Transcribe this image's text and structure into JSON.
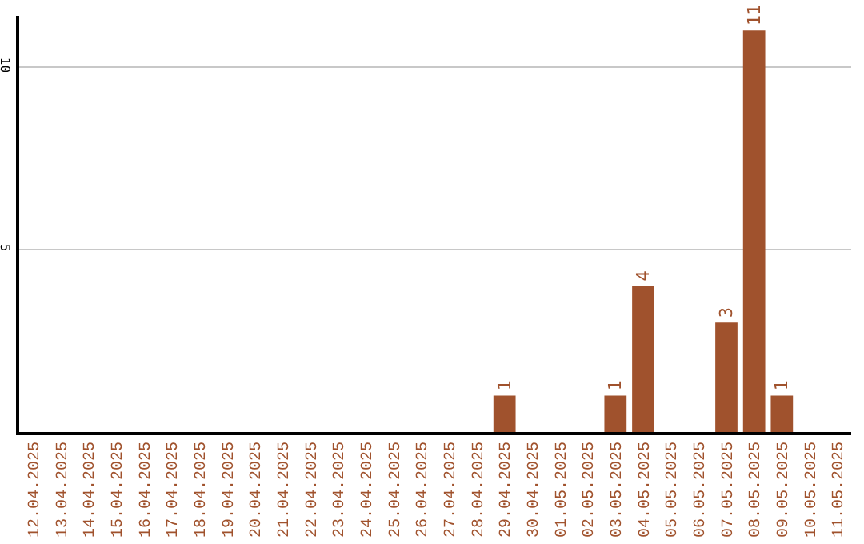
{
  "chart_data": {
    "type": "bar",
    "categories": [
      "12.04.2025",
      "13.04.2025",
      "14.04.2025",
      "15.04.2025",
      "16.04.2025",
      "17.04.2025",
      "18.04.2025",
      "19.04.2025",
      "20.04.2025",
      "21.04.2025",
      "22.04.2025",
      "23.04.2025",
      "24.04.2025",
      "25.04.2025",
      "26.04.2025",
      "27.04.2025",
      "28.04.2025",
      "29.04.2025",
      "30.04.2025",
      "01.05.2025",
      "02.05.2025",
      "03.05.2025",
      "04.05.2025",
      "05.05.2025",
      "06.05.2025",
      "07.05.2025",
      "08.05.2025",
      "09.05.2025",
      "10.05.2025",
      "11.05.2025"
    ],
    "values": [
      0,
      0,
      0,
      0,
      0,
      0,
      0,
      0,
      0,
      0,
      0,
      0,
      0,
      0,
      0,
      0,
      0,
      1,
      0,
      0,
      0,
      1,
      4,
      0,
      0,
      3,
      11,
      1,
      0,
      0
    ],
    "value_labels": [
      null,
      null,
      null,
      null,
      null,
      null,
      null,
      null,
      null,
      null,
      null,
      null,
      null,
      null,
      null,
      null,
      null,
      "1",
      null,
      null,
      null,
      "1",
      "4",
      null,
      null,
      "3",
      "11",
      "1",
      null,
      null
    ],
    "color": "#a0522d",
    "ylim": [
      0,
      11.4
    ],
    "yticks": [
      5,
      10
    ],
    "grid": "y"
  }
}
